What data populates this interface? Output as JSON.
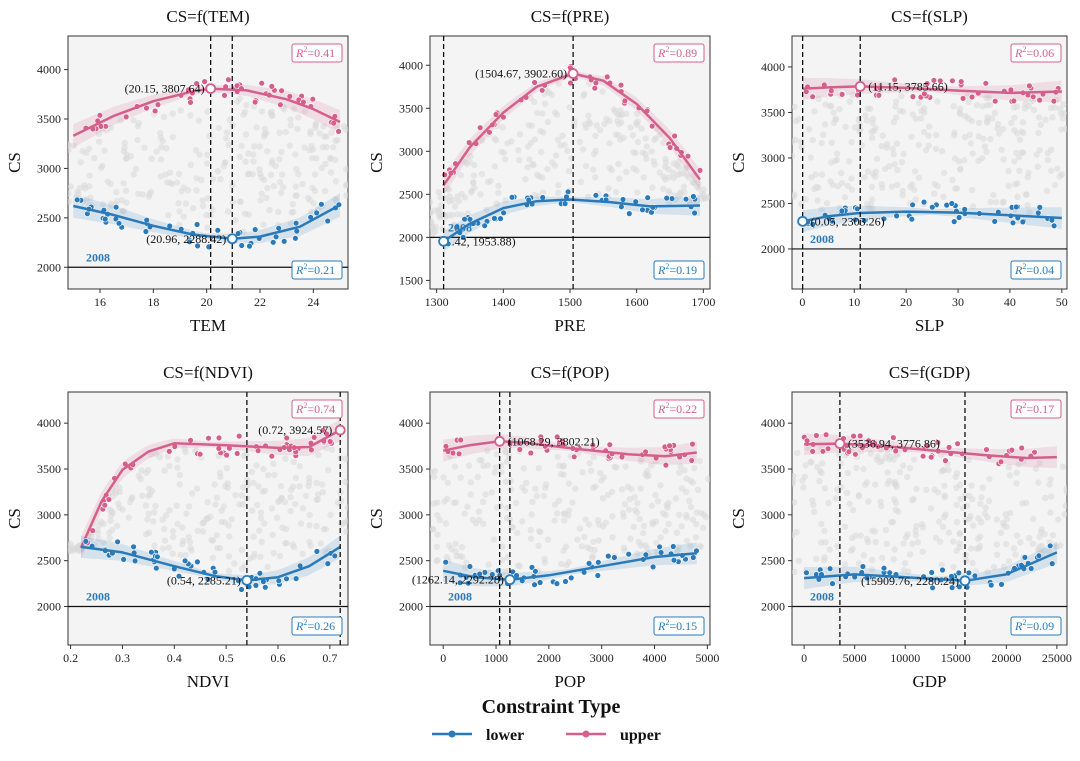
{
  "colors": {
    "lower": "#2a7ab9",
    "upper": "#d4608a",
    "background_points": "#d9d9d9",
    "panel_bg": "#f4f4f4"
  },
  "legend": {
    "title": "Constraint Type",
    "items": [
      {
        "label": "lower",
        "color": "#2a7ab9"
      },
      {
        "label": "upper",
        "color": "#d4608a"
      }
    ]
  },
  "chart_data": [
    {
      "type": "scatter",
      "title": "CS=f(TEM)",
      "xlabel": "TEM",
      "ylabel": "CS",
      "xlim": [
        14.8,
        25.3
      ],
      "ylim": [
        1780,
        4340
      ],
      "xticks": [
        16,
        18,
        20,
        22,
        24
      ],
      "yticks": [
        2000,
        2500,
        3000,
        3500,
        4000
      ],
      "baseline_y": 2000,
      "baseline_label": "2008",
      "vlines": [
        20.15,
        20.96
      ],
      "upper": {
        "r2_label": "=0.41",
        "curve": [
          [
            15,
            3330
          ],
          [
            16.5,
            3530
          ],
          [
            18,
            3680
          ],
          [
            19.5,
            3780
          ],
          [
            20.15,
            3807.64
          ],
          [
            21.5,
            3790
          ],
          [
            23,
            3700
          ],
          [
            24,
            3600
          ],
          [
            25,
            3470
          ]
        ],
        "key_point": {
          "x": 20.15,
          "y": 3807.64,
          "label": "(20.15, 3807.64)"
        }
      },
      "lower": {
        "r2_label": "=0.21",
        "curve": [
          [
            15,
            2620
          ],
          [
            16.5,
            2530
          ],
          [
            18,
            2420
          ],
          [
            19.5,
            2330
          ],
          [
            20.96,
            2288.42
          ],
          [
            22,
            2310
          ],
          [
            23.5,
            2410
          ],
          [
            25,
            2630
          ]
        ],
        "key_point": {
          "x": 20.96,
          "y": 2288.42,
          "label": "(20.96, 2288.42)"
        }
      }
    },
    {
      "type": "scatter",
      "title": "CS=f(PRE)",
      "xlabel": "PRE",
      "ylabel": "CS",
      "xlim": [
        1290,
        1710
      ],
      "ylim": [
        1400,
        4340
      ],
      "xticks": [
        1300,
        1400,
        1500,
        1600,
        1700
      ],
      "yticks": [
        1500,
        2000,
        2500,
        3000,
        3500,
        4000
      ],
      "baseline_y": 2000,
      "baseline_label": "2008",
      "vlines": [
        1310.42,
        1504.67
      ],
      "upper": {
        "r2_label": "=0.89",
        "curve": [
          [
            1310,
            2600
          ],
          [
            1350,
            3050
          ],
          [
            1400,
            3450
          ],
          [
            1450,
            3750
          ],
          [
            1504.67,
            3902.6
          ],
          [
            1550,
            3820
          ],
          [
            1600,
            3550
          ],
          [
            1650,
            3150
          ],
          [
            1695,
            2670
          ]
        ],
        "key_point": {
          "x": 1504.67,
          "y": 3902.6,
          "label": "(1504.67, 3902.60)"
        }
      },
      "lower": {
        "r2_label": "=0.19",
        "curve": [
          [
            1310.42,
            1953.88
          ],
          [
            1350,
            2160
          ],
          [
            1400,
            2340
          ],
          [
            1450,
            2420
          ],
          [
            1500,
            2440
          ],
          [
            1560,
            2410
          ],
          [
            1620,
            2360
          ],
          [
            1695,
            2370
          ]
        ],
        "key_point": {
          "x": 1310.42,
          "y": 1953.88,
          "label": ".42, 1953.88)"
        }
      }
    },
    {
      "type": "scatter",
      "title": "CS=f(SLP)",
      "xlabel": "SLP",
      "ylabel": "CS",
      "xlim": [
        -2,
        51
      ],
      "ylim": [
        1560,
        4340
      ],
      "xticks": [
        0,
        10,
        20,
        30,
        40,
        50
      ],
      "yticks": [
        2000,
        2500,
        3000,
        3500,
        4000
      ],
      "baseline_y": 2000,
      "baseline_label": "2008",
      "vlines": [
        0.05,
        11.15
      ],
      "upper": {
        "r2_label": "=0.06",
        "curve": [
          [
            0,
            3760
          ],
          [
            5,
            3775
          ],
          [
            11.15,
            3785.66
          ],
          [
            20,
            3770
          ],
          [
            30,
            3740
          ],
          [
            40,
            3715
          ],
          [
            50,
            3730
          ]
        ],
        "key_point": {
          "x": 11.15,
          "y": 3785.66,
          "label": "(11.15, 3785.66)"
        }
      },
      "lower": {
        "r2_label": "=0.04",
        "curve": [
          [
            0.05,
            2303.26
          ],
          [
            5,
            2360
          ],
          [
            11,
            2395
          ],
          [
            20,
            2410
          ],
          [
            30,
            2400
          ],
          [
            40,
            2370
          ],
          [
            50,
            2340
          ]
        ],
        "key_point": {
          "x": 0.05,
          "y": 2303.26,
          "label": "(0.05, 2303.26)"
        }
      }
    },
    {
      "type": "scatter",
      "title": "CS=f(NDVI)",
      "xlabel": "NDVI",
      "ylabel": "CS",
      "xlim": [
        0.195,
        0.735
      ],
      "ylim": [
        1580,
        4340
      ],
      "xticks": [
        0.2,
        0.3,
        0.4,
        0.5,
        0.6,
        0.7
      ],
      "yticks": [
        2000,
        2500,
        3000,
        3500,
        4000
      ],
      "baseline_y": 2000,
      "baseline_label": "2008",
      "vlines": [
        0.54,
        0.72
      ],
      "upper": {
        "r2_label": "=0.74",
        "curve": [
          [
            0.22,
            2640
          ],
          [
            0.26,
            3150
          ],
          [
            0.3,
            3490
          ],
          [
            0.35,
            3690
          ],
          [
            0.4,
            3780
          ],
          [
            0.5,
            3760
          ],
          [
            0.6,
            3730
          ],
          [
            0.66,
            3740
          ],
          [
            0.72,
            3924.57
          ]
        ],
        "key_point": {
          "x": 0.72,
          "y": 3924.57,
          "label": "(0.72, 3924.57)"
        }
      },
      "lower": {
        "r2_label": "=0.26",
        "curve": [
          [
            0.22,
            2650
          ],
          [
            0.3,
            2590
          ],
          [
            0.4,
            2440
          ],
          [
            0.48,
            2330
          ],
          [
            0.54,
            2285.21
          ],
          [
            0.6,
            2320
          ],
          [
            0.66,
            2440
          ],
          [
            0.72,
            2650
          ]
        ],
        "key_point": {
          "x": 0.54,
          "y": 2285.21,
          "label": "(0.54, 2285.21)"
        }
      }
    },
    {
      "type": "scatter",
      "title": "CS=f(POP)",
      "xlabel": "POP",
      "ylabel": "CS",
      "xlim": [
        -250,
        5050
      ],
      "ylim": [
        1580,
        4340
      ],
      "xticks": [
        0,
        1000,
        2000,
        3000,
        4000,
        5000
      ],
      "yticks": [
        2000,
        2500,
        3000,
        3500,
        4000
      ],
      "baseline_y": 2000,
      "baseline_label": "2008",
      "vlines": [
        1068.29,
        1262.14
      ],
      "upper": {
        "r2_label": "=0.22",
        "curve": [
          [
            0,
            3700
          ],
          [
            500,
            3760
          ],
          [
            1068.29,
            3802.21
          ],
          [
            1500,
            3790
          ],
          [
            2500,
            3720
          ],
          [
            3500,
            3660
          ],
          [
            4200,
            3640
          ],
          [
            4800,
            3680
          ]
        ],
        "key_point": {
          "x": 1068.29,
          "y": 3802.21,
          "label": "(1068.29, 3802.21)"
        }
      },
      "lower": {
        "r2_label": "=0.15",
        "curve": [
          [
            0,
            2390
          ],
          [
            600,
            2320
          ],
          [
            1262.14,
            2292.28
          ],
          [
            2000,
            2340
          ],
          [
            3000,
            2440
          ],
          [
            4000,
            2540
          ],
          [
            4800,
            2580
          ]
        ],
        "key_point": {
          "x": 1262.14,
          "y": 2292.28,
          "label": "(1262.14, 2292.28)"
        }
      }
    },
    {
      "type": "scatter",
      "title": "CS=f(GDP)",
      "xlabel": "GDP",
      "ylabel": "CS",
      "xlim": [
        -1200,
        26000
      ],
      "ylim": [
        1580,
        4340
      ],
      "xticks": [
        0,
        5000,
        10000,
        15000,
        20000,
        25000
      ],
      "yticks": [
        2000,
        2500,
        3000,
        3500,
        4000
      ],
      "baseline_y": 2000,
      "baseline_label": "2008",
      "vlines": [
        3536.94,
        15909.76
      ],
      "upper": {
        "r2_label": "=0.17",
        "curve": [
          [
            0,
            3770
          ],
          [
            3536.94,
            3776.86
          ],
          [
            8000,
            3750
          ],
          [
            13000,
            3700
          ],
          [
            18000,
            3650
          ],
          [
            22000,
            3620
          ],
          [
            25000,
            3630
          ]
        ],
        "key_point": {
          "x": 3536.94,
          "y": 3776.86,
          "label": "(3536.94, 3776.86)"
        }
      },
      "lower": {
        "r2_label": "=0.09",
        "curve": [
          [
            0,
            2310
          ],
          [
            5000,
            2350
          ],
          [
            10000,
            2320
          ],
          [
            15909.76,
            2280.24
          ],
          [
            20000,
            2350
          ],
          [
            25000,
            2590
          ]
        ],
        "key_point": {
          "x": 15909.76,
          "y": 2280.24,
          "label": "(15909.76, 2280.24)"
        }
      }
    }
  ]
}
